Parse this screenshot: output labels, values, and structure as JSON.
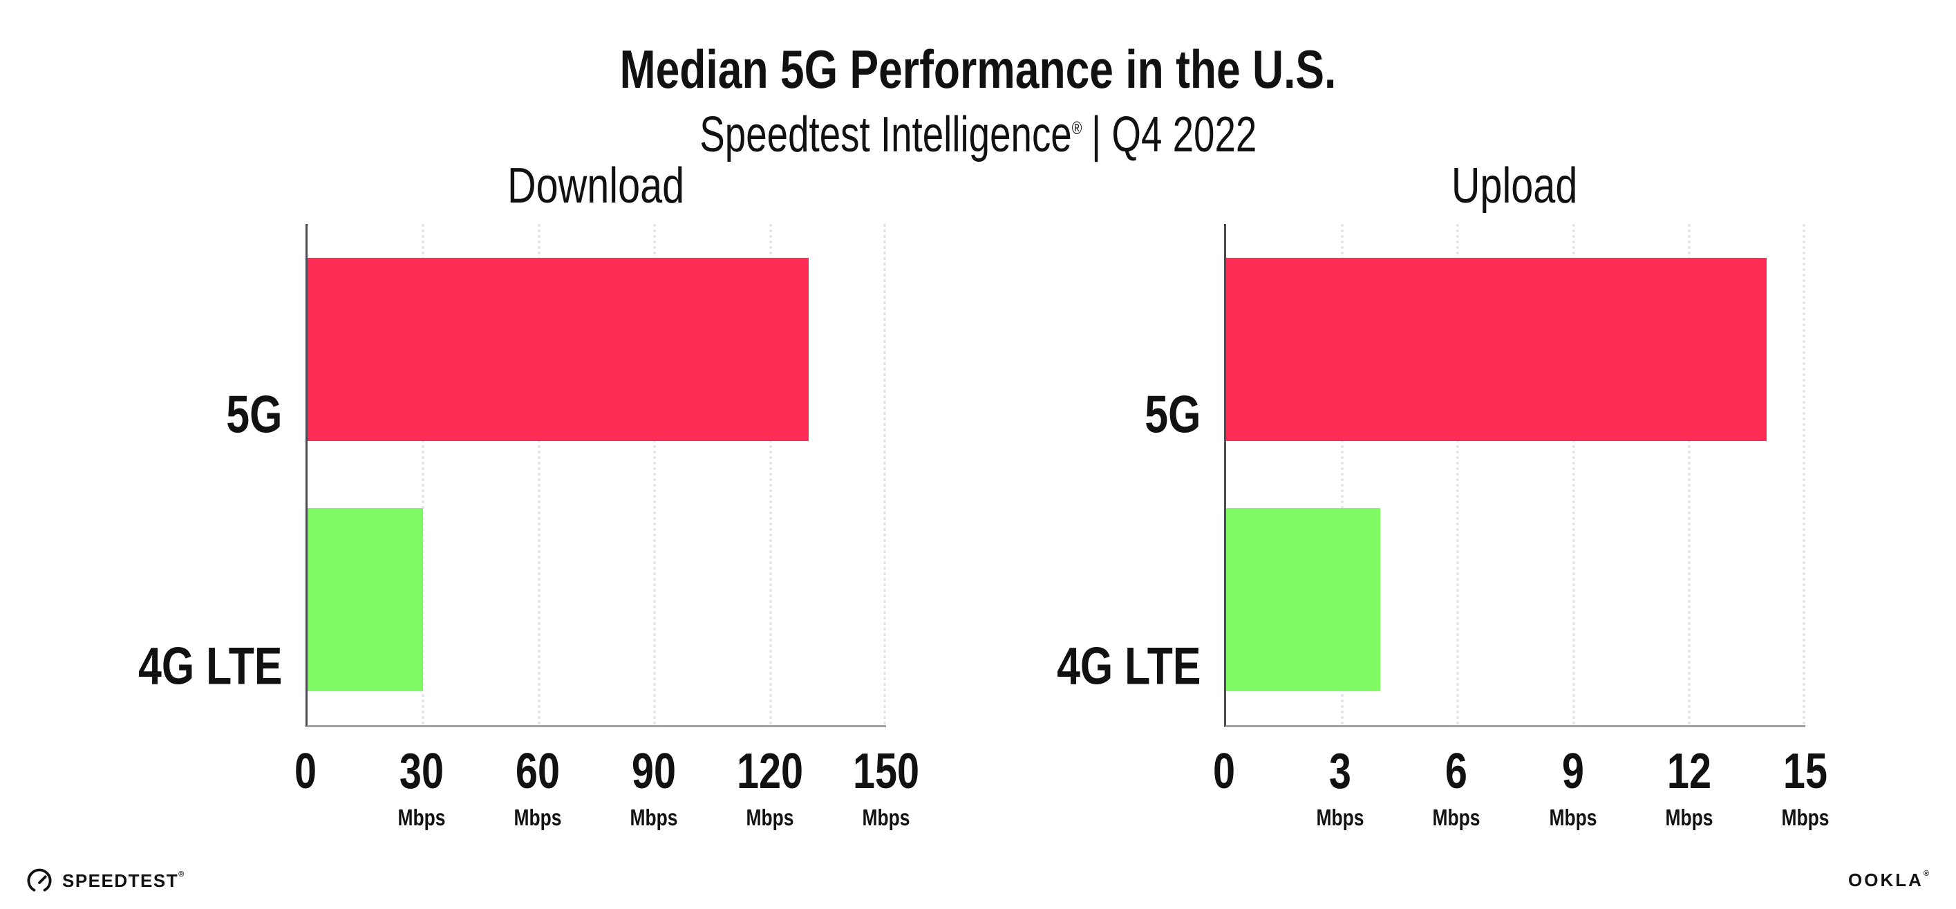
{
  "header": {
    "title": "Median 5G Performance in the U.S.",
    "subtitle_product": "Speedtest Intelligence",
    "subtitle_reg": "®",
    "subtitle_period": "| Q4 2022"
  },
  "chart_data": [
    {
      "type": "bar",
      "orientation": "horizontal",
      "title": "Download",
      "categories": [
        "5G",
        "4G LTE"
      ],
      "values": [
        130,
        30
      ],
      "xlim": [
        0,
        150
      ],
      "ticks": [
        0,
        30,
        60,
        90,
        120,
        150
      ],
      "tick_unit": "Mbps",
      "colors": [
        "#FF2D56",
        "#80FA64"
      ],
      "grid": "vertical-dotted",
      "legend": "none"
    },
    {
      "type": "bar",
      "orientation": "horizontal",
      "title": "Upload",
      "categories": [
        "5G",
        "4G LTE"
      ],
      "values": [
        14,
        4
      ],
      "xlim": [
        0,
        15
      ],
      "ticks": [
        0,
        3,
        6,
        9,
        12,
        15
      ],
      "tick_unit": "Mbps",
      "colors": [
        "#FF2D56",
        "#80FA64"
      ],
      "grid": "vertical-dotted",
      "legend": "none"
    }
  ],
  "footer": {
    "speedtest_label": "SPEEDTEST",
    "speedtest_reg": "®",
    "ookla_label": "OOKLA",
    "ookla_reg": "®"
  },
  "colors": {
    "bar_5g": "#FF2D56",
    "bar_4g_lte": "#80FA64",
    "background": "#FFFFFF",
    "text": "#111111",
    "gridline": "#E2E2EE",
    "y_axis": "#4B4B52",
    "x_axis": "#A0A0A8"
  }
}
